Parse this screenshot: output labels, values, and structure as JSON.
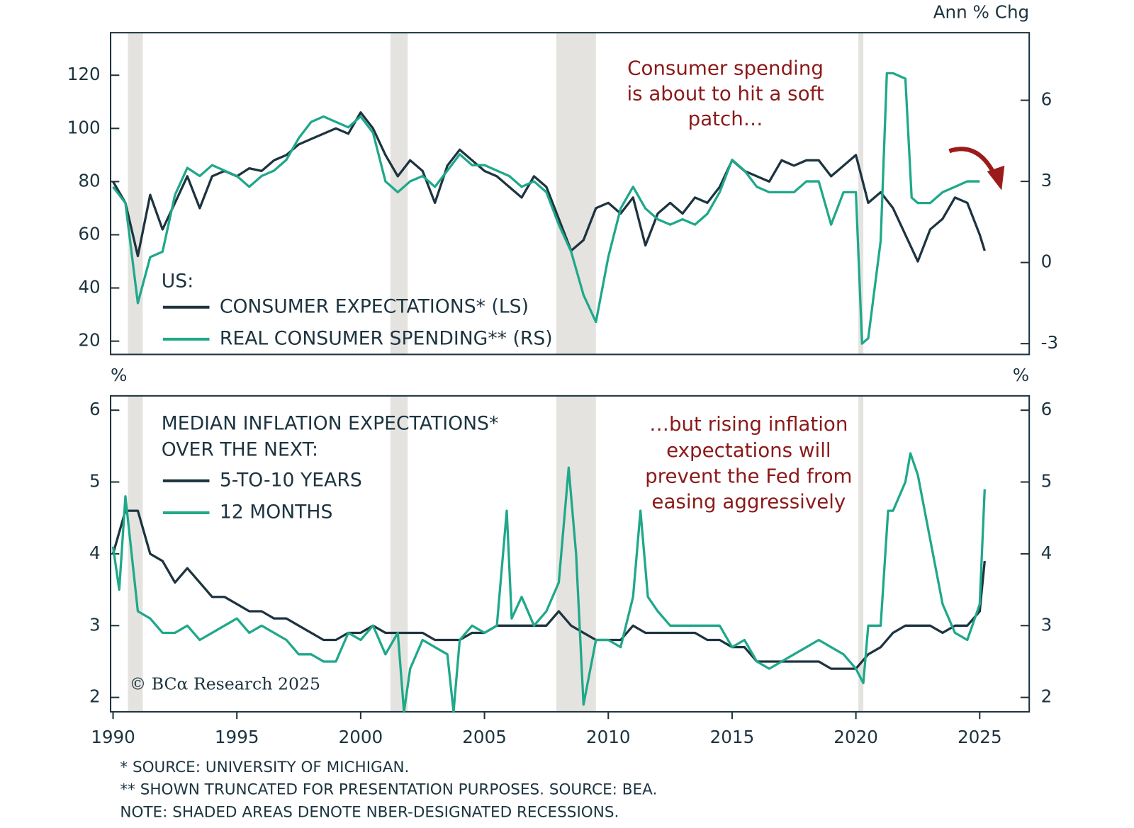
{
  "chart_data": [
    {
      "type": "line",
      "y2_label": "Ann % Chg",
      "legend_title": [
        "US:"
      ],
      "annotation": [
        "Consumer spending",
        "is about to hit a soft",
        "patch…"
      ],
      "xlim": [
        1989.9,
        2027
      ],
      "ylim": [
        15,
        136
      ],
      "yticks": [
        20,
        40,
        60,
        80,
        100,
        120
      ],
      "y2lim": [
        -3.4,
        8.5
      ],
      "y2ticks": [
        -3,
        0,
        3,
        6
      ],
      "series": [
        {
          "name": "CONSUMER EXPECTATIONS* (LS)",
          "color": "#1d3440",
          "axis": "y",
          "x": [
            1990,
            1990.5,
            1991,
            1991.5,
            1992,
            1992.5,
            1993,
            1993.5,
            1994,
            1994.5,
            1995,
            1995.5,
            1996,
            1996.5,
            1997,
            1997.5,
            1998,
            1998.5,
            1999,
            1999.5,
            2000,
            2000.5,
            2001,
            2001.5,
            2002,
            2002.5,
            2003,
            2003.5,
            2004,
            2004.5,
            2005,
            2005.5,
            2006,
            2006.5,
            2007,
            2007.5,
            2008,
            2008.5,
            2009,
            2009.5,
            2010,
            2010.5,
            2011,
            2011.5,
            2012,
            2012.5,
            2013,
            2013.5,
            2014,
            2014.5,
            2015,
            2015.5,
            2016,
            2016.5,
            2017,
            2017.5,
            2018,
            2018.5,
            2019,
            2019.5,
            2020,
            2020.5,
            2021,
            2021.5,
            2022,
            2022.5,
            2023,
            2023.5,
            2024,
            2024.5,
            2025,
            2025.2
          ],
          "values": [
            80,
            72,
            52,
            75,
            62,
            72,
            82,
            70,
            82,
            84,
            82,
            85,
            84,
            88,
            90,
            94,
            96,
            98,
            100,
            98,
            106,
            100,
            90,
            82,
            88,
            84,
            72,
            86,
            92,
            88,
            84,
            82,
            78,
            74,
            82,
            78,
            66,
            54,
            58,
            70,
            72,
            68,
            74,
            56,
            68,
            72,
            68,
            74,
            72,
            78,
            88,
            84,
            82,
            80,
            88,
            86,
            88,
            88,
            82,
            86,
            90,
            72,
            76,
            70,
            60,
            50,
            62,
            66,
            74,
            72,
            60,
            54
          ]
        },
        {
          "name": "REAL CONSUMER SPENDING** (RS)",
          "color": "#1fa88a",
          "axis": "y2",
          "x": [
            1990,
            1990.5,
            1991,
            1991.5,
            1992,
            1992.5,
            1993,
            1993.5,
            1994,
            1994.5,
            1995,
            1995.5,
            1996,
            1996.5,
            1997,
            1997.5,
            1998,
            1998.5,
            1999,
            1999.5,
            2000,
            2000.5,
            2001,
            2001.5,
            2002,
            2002.5,
            2003,
            2003.5,
            2004,
            2004.5,
            2005,
            2005.5,
            2006,
            2006.5,
            2007,
            2007.5,
            2008,
            2008.5,
            2009,
            2009.5,
            2010,
            2010.5,
            2011,
            2011.5,
            2012,
            2012.5,
            2013,
            2013.5,
            2014,
            2014.5,
            2015,
            2015.5,
            2016,
            2016.5,
            2017,
            2017.5,
            2018,
            2018.5,
            2019,
            2019.5,
            2020,
            2020.25,
            2020.5,
            2021,
            2021.25,
            2021.5,
            2022,
            2022.25,
            2022.5,
            2023,
            2023.5,
            2024,
            2024.5,
            2025
          ],
          "values": [
            2.8,
            2.2,
            -1.5,
            0.2,
            0.4,
            2.5,
            3.5,
            3.2,
            3.6,
            3.4,
            3.2,
            2.8,
            3.2,
            3.4,
            3.8,
            4.6,
            5.2,
            5.4,
            5.2,
            5.0,
            5.4,
            4.8,
            3.0,
            2.6,
            3.0,
            3.2,
            2.8,
            3.4,
            4.0,
            3.6,
            3.6,
            3.4,
            3.2,
            2.8,
            3.0,
            2.6,
            1.4,
            0.4,
            -1.2,
            -2.2,
            0.2,
            2.0,
            2.8,
            2.0,
            1.6,
            1.4,
            1.6,
            1.4,
            1.8,
            2.6,
            3.8,
            3.4,
            2.8,
            2.6,
            2.6,
            2.6,
            3.0,
            3.0,
            1.4,
            2.6,
            2.6,
            -3.0,
            -2.8,
            0.8,
            7.0,
            7.0,
            6.8,
            2.4,
            2.2,
            2.2,
            2.6,
            2.8,
            3.0,
            3.0
          ]
        }
      ]
    },
    {
      "type": "line",
      "y_label": "%",
      "y2_label": "%",
      "legend_title": [
        "MEDIAN INFLATION EXPECTATIONS*",
        "OVER THE NEXT:"
      ],
      "annotation": [
        "…but rising inflation",
        "expectations will",
        "prevent the Fed from",
        "easing aggressively"
      ],
      "copyright": "© BCα Research 2025",
      "xlim": [
        1989.9,
        2027
      ],
      "xticks": [
        1990,
        1995,
        2000,
        2005,
        2010,
        2015,
        2020,
        2025
      ],
      "ylim": [
        1.8,
        6.2
      ],
      "yticks": [
        2,
        3,
        4,
        5,
        6
      ],
      "y2lim": [
        1.8,
        6.2
      ],
      "y2ticks": [
        2,
        3,
        4,
        5,
        6
      ],
      "series": [
        {
          "name": "5-TO-10 YEARS",
          "color": "#1d3440",
          "axis": "y",
          "x": [
            1990,
            1990.5,
            1991,
            1991.5,
            1992,
            1992.5,
            1993,
            1993.5,
            1994,
            1994.5,
            1995,
            1995.5,
            1996,
            1996.5,
            1997,
            1997.5,
            1998,
            1998.5,
            1999,
            1999.5,
            2000,
            2000.5,
            2001,
            2001.5,
            2002,
            2002.5,
            2003,
            2003.5,
            2004,
            2004.5,
            2005,
            2005.5,
            2006,
            2006.5,
            2007,
            2007.5,
            2008,
            2008.5,
            2009,
            2009.5,
            2010,
            2010.5,
            2011,
            2011.5,
            2012,
            2012.5,
            2013,
            2013.5,
            2014,
            2014.5,
            2015,
            2015.5,
            2016,
            2016.5,
            2017,
            2017.5,
            2018,
            2018.5,
            2019,
            2019.5,
            2020,
            2020.5,
            2021,
            2021.5,
            2022,
            2022.5,
            2023,
            2023.5,
            2024,
            2024.5,
            2025,
            2025.2
          ],
          "values": [
            4.0,
            4.6,
            4.6,
            4.0,
            3.9,
            3.6,
            3.8,
            3.6,
            3.4,
            3.4,
            3.3,
            3.2,
            3.2,
            3.1,
            3.1,
            3.0,
            2.9,
            2.8,
            2.8,
            2.9,
            2.9,
            3.0,
            2.9,
            2.9,
            2.9,
            2.9,
            2.8,
            2.8,
            2.8,
            2.9,
            2.9,
            3.0,
            3.0,
            3.0,
            3.0,
            3.0,
            3.2,
            3.0,
            2.9,
            2.8,
            2.8,
            2.8,
            3.0,
            2.9,
            2.9,
            2.9,
            2.9,
            2.9,
            2.8,
            2.8,
            2.7,
            2.7,
            2.5,
            2.5,
            2.5,
            2.5,
            2.5,
            2.5,
            2.4,
            2.4,
            2.4,
            2.6,
            2.7,
            2.9,
            3.0,
            3.0,
            3.0,
            2.9,
            3.0,
            3.0,
            3.2,
            3.9
          ]
        },
        {
          "name": "12 MONTHS",
          "color": "#1fa88a",
          "axis": "y",
          "x": [
            1990,
            1990.25,
            1990.5,
            1991,
            1991.5,
            1992,
            1992.5,
            1993,
            1993.5,
            1994,
            1994.5,
            1995,
            1995.5,
            1996,
            1996.5,
            1997,
            1997.5,
            1998,
            1998.5,
            1999,
            1999.5,
            2000,
            2000.5,
            2001,
            2001.5,
            2001.75,
            2002,
            2002.5,
            2003,
            2003.5,
            2003.75,
            2004,
            2004.5,
            2005,
            2005.5,
            2005.9,
            2006.1,
            2006.5,
            2007,
            2007.5,
            2008,
            2008.4,
            2008.7,
            2009,
            2009.5,
            2010,
            2010.5,
            2011,
            2011.3,
            2011.6,
            2012,
            2012.5,
            2013,
            2013.5,
            2014,
            2014.5,
            2015,
            2015.5,
            2016,
            2016.5,
            2017,
            2017.5,
            2018,
            2018.5,
            2019,
            2019.5,
            2020,
            2020.3,
            2020.5,
            2021,
            2021.3,
            2021.5,
            2022,
            2022.2,
            2022.5,
            2023,
            2023.5,
            2024,
            2024.5,
            2025,
            2025.2
          ],
          "values": [
            4.1,
            3.5,
            4.8,
            3.2,
            3.1,
            2.9,
            2.9,
            3.0,
            2.8,
            2.9,
            3.0,
            3.1,
            2.9,
            3.0,
            2.9,
            2.8,
            2.6,
            2.6,
            2.5,
            2.5,
            2.9,
            2.8,
            3.0,
            2.6,
            2.9,
            1.8,
            2.4,
            2.8,
            2.7,
            2.6,
            1.8,
            2.8,
            3.0,
            2.9,
            3.0,
            4.6,
            3.1,
            3.4,
            3.0,
            3.2,
            3.6,
            5.2,
            4.0,
            1.9,
            2.8,
            2.8,
            2.7,
            3.4,
            4.6,
            3.4,
            3.2,
            3.0,
            3.0,
            3.0,
            3.0,
            3.0,
            2.7,
            2.8,
            2.5,
            2.4,
            2.5,
            2.6,
            2.7,
            2.8,
            2.7,
            2.6,
            2.4,
            2.2,
            3.0,
            3.0,
            4.6,
            4.6,
            5.0,
            5.4,
            5.1,
            4.2,
            3.3,
            2.9,
            2.8,
            3.3,
            4.9
          ]
        }
      ]
    }
  ],
  "recessions": [
    [
      1990.6,
      1991.2
    ],
    [
      2001.2,
      2001.9
    ],
    [
      2007.9,
      2009.5
    ],
    [
      2020.1,
      2020.3
    ]
  ],
  "footnotes": [
    "* SOURCE: UNIVERSITY OF MICHIGAN.",
    "** SHOWN TRUNCATED FOR PRESENTATION PURPOSES. SOURCE: BEA.",
    "NOTE: SHADED AREAS DENOTE NBER-DESIGNATED RECESSIONS."
  ]
}
